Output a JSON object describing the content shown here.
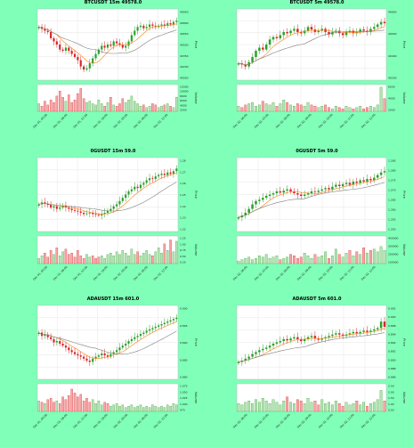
{
  "page": {
    "background": "#7fffb8"
  },
  "colors": {
    "up": "#2ca02c",
    "down": "#d62728",
    "ma_fast": "#ff7f0e",
    "ma_slow": "#7f7f7f",
    "vol_up": "#b5e3b5",
    "vol_down": "#f4a6a6"
  },
  "chart_data": [
    {
      "type": "candlestick",
      "title": "BTCUSDT 15m 49578.0",
      "ylabel": "Price",
      "volume_label": "Volume",
      "price_ticks": [
        "49950",
        "49800",
        "49650",
        "49500",
        "49350",
        "49200",
        "49050"
      ],
      "volume_ticks": [
        "12000",
        "10000",
        "8000",
        "6000",
        "4000",
        "2000"
      ],
      "x_ticks": [
        "Dec 01, 00:00",
        "Dec 01, 06:00",
        "Dec 01, 12:00",
        "Dec 01, 18:00",
        "Dec 02, 00:00",
        "Dec 02, 06:00",
        "Dec 02, 12:00"
      ],
      "close": [
        0.78,
        0.75,
        0.72,
        0.7,
        0.6,
        0.55,
        0.5,
        0.42,
        0.4,
        0.45,
        0.4,
        0.35,
        0.3,
        0.25,
        0.15,
        0.1,
        0.12,
        0.2,
        0.28,
        0.35,
        0.42,
        0.48,
        0.45,
        0.5,
        0.48,
        0.55,
        0.52,
        0.5,
        0.45,
        0.48,
        0.55,
        0.65,
        0.72,
        0.78,
        0.8,
        0.76,
        0.78,
        0.82,
        0.8,
        0.78,
        0.8,
        0.82,
        0.8,
        0.84,
        0.82,
        0.86,
        0.88
      ],
      "volume": [
        0.3,
        0.2,
        0.4,
        0.25,
        0.45,
        0.35,
        0.6,
        0.8,
        0.55,
        0.4,
        0.65,
        0.35,
        0.45,
        0.7,
        0.9,
        0.5,
        0.35,
        0.4,
        0.3,
        0.25,
        0.45,
        0.3,
        0.2,
        0.35,
        0.55,
        0.25,
        0.2,
        0.3,
        0.5,
        0.35,
        0.45,
        0.6,
        0.4,
        0.3,
        0.2,
        0.25,
        0.15,
        0.2,
        0.3,
        0.25,
        0.15,
        0.2,
        0.25,
        0.3,
        0.2,
        0.15,
        0.55
      ]
    },
    {
      "type": "candlestick",
      "title": "BTCUSDT 5m 49578.0",
      "ylabel": "Price",
      "volume_label": "Volume",
      "price_ticks": [
        "49800",
        "49600",
        "49400",
        "49200"
      ],
      "volume_ticks": [
        "6000",
        "4000",
        "2000"
      ],
      "x_ticks": [
        "Dec 02, 06:00",
        "Dec 02, 07:00",
        "Dec 02, 08:00",
        "Dec 02, 09:00",
        "Dec 02, 10:00",
        "Dec 02, 11:00",
        "Dec 02, 12:00"
      ],
      "close": [
        0.2,
        0.18,
        0.15,
        0.22,
        0.3,
        0.4,
        0.45,
        0.42,
        0.5,
        0.58,
        0.62,
        0.6,
        0.65,
        0.7,
        0.68,
        0.72,
        0.75,
        0.7,
        0.68,
        0.72,
        0.78,
        0.74,
        0.7,
        0.72,
        0.75,
        0.7,
        0.66,
        0.7,
        0.72,
        0.68,
        0.65,
        0.7,
        0.72,
        0.68,
        0.7,
        0.74,
        0.72,
        0.7,
        0.75,
        0.78,
        0.82,
        0.86,
        0.84
      ],
      "volume": [
        0.2,
        0.15,
        0.25,
        0.3,
        0.35,
        0.2,
        0.25,
        0.4,
        0.3,
        0.25,
        0.35,
        0.2,
        0.3,
        0.45,
        0.35,
        0.25,
        0.2,
        0.3,
        0.25,
        0.2,
        0.35,
        0.25,
        0.2,
        0.15,
        0.2,
        0.25,
        0.15,
        0.1,
        0.2,
        0.15,
        0.1,
        0.2,
        0.15,
        0.1,
        0.15,
        0.2,
        0.1,
        0.15,
        0.2,
        0.15,
        0.25,
        0.95,
        0.5
      ]
    },
    {
      "type": "candlestick",
      "title": "0GUSDT 15m 59.0",
      "ylabel": "Price",
      "volume_label": "Volume",
      "price_ticks": [
        "1.28",
        "1.27",
        "1.26",
        "1.25",
        "1.24",
        "1.23",
        "1.22"
      ],
      "volume_ticks": [
        "1.25",
        "1.00",
        "0.75",
        "0.50",
        "0.25"
      ],
      "x_ticks": [
        "Dec 01, 00:00",
        "Dec 01, 06:00",
        "Dec 01, 12:00",
        "Dec 01, 18:00",
        "Dec 02, 00:00",
        "Dec 02, 06:00",
        "Dec 02, 12:00"
      ],
      "close": [
        0.35,
        0.38,
        0.36,
        0.34,
        0.3,
        0.32,
        0.28,
        0.3,
        0.33,
        0.3,
        0.28,
        0.26,
        0.25,
        0.24,
        0.22,
        0.2,
        0.21,
        0.22,
        0.2,
        0.19,
        0.18,
        0.2,
        0.22,
        0.25,
        0.28,
        0.32,
        0.35,
        0.4,
        0.45,
        0.5,
        0.55,
        0.58,
        0.62,
        0.6,
        0.65,
        0.68,
        0.72,
        0.75,
        0.74,
        0.78,
        0.8,
        0.82,
        0.8,
        0.84,
        0.82,
        0.86,
        0.9
      ],
      "volume": [
        0.2,
        0.3,
        0.4,
        0.25,
        0.5,
        0.35,
        0.6,
        0.3,
        0.45,
        0.55,
        0.35,
        0.4,
        0.25,
        0.5,
        0.3,
        0.2,
        0.35,
        0.25,
        0.3,
        0.2,
        0.25,
        0.3,
        0.2,
        0.35,
        0.4,
        0.3,
        0.45,
        0.35,
        0.5,
        0.4,
        0.3,
        0.55,
        0.35,
        0.45,
        0.3,
        0.4,
        0.5,
        0.35,
        0.3,
        0.45,
        0.6,
        0.4,
        0.75,
        0.5,
        0.9,
        0.45,
        0.85
      ]
    },
    {
      "type": "candlestick",
      "title": "0GUSDT 5m 59.0",
      "ylabel": "Price",
      "volume_label": "Volume",
      "price_ticks": [
        "1.285",
        "1.280",
        "1.275",
        "1.270",
        "1.265",
        "1.260",
        "1.255",
        "1.250"
      ],
      "volume_ticks": [
        "400000",
        "300000",
        "200000",
        "100000"
      ],
      "x_ticks": [
        "Dec 02, 06:00",
        "Dec 02, 07:00",
        "Dec 02, 08:00",
        "Dec 02, 09:00",
        "Dec 02, 10:00",
        "Dec 02, 11:00",
        "Dec 02, 12:00"
      ],
      "close": [
        0.15,
        0.18,
        0.22,
        0.28,
        0.35,
        0.4,
        0.42,
        0.45,
        0.48,
        0.5,
        0.52,
        0.55,
        0.53,
        0.56,
        0.58,
        0.55,
        0.52,
        0.5,
        0.48,
        0.5,
        0.52,
        0.55,
        0.54,
        0.56,
        0.58,
        0.6,
        0.58,
        0.62,
        0.65,
        0.63,
        0.66,
        0.68,
        0.65,
        0.7,
        0.68,
        0.72,
        0.7,
        0.74,
        0.72,
        0.76,
        0.8,
        0.84,
        0.86
      ],
      "volume": [
        0.1,
        0.15,
        0.2,
        0.25,
        0.15,
        0.2,
        0.3,
        0.25,
        0.35,
        0.2,
        0.25,
        0.3,
        0.15,
        0.2,
        0.25,
        0.35,
        0.3,
        0.2,
        0.25,
        0.4,
        0.3,
        0.2,
        0.35,
        0.25,
        0.3,
        0.45,
        0.2,
        0.3,
        0.55,
        0.35,
        0.25,
        0.4,
        0.5,
        0.3,
        0.45,
        0.35,
        0.6,
        0.4,
        0.5,
        0.55,
        0.45,
        0.65,
        0.5
      ]
    },
    {
      "type": "candlestick",
      "title": "ADAUSDT 15m 601.0",
      "ylabel": "Price",
      "volume_label": "Volume",
      "price_ticks": [
        "0.900",
        "0.895",
        "0.890",
        "0.885",
        "0.880"
      ],
      "volume_ticks": [
        "1.075",
        "1.050",
        "1.025",
        "1.000",
        "975"
      ],
      "x_ticks": [
        "Dec 01, 00:00",
        "Dec 01, 06:00",
        "Dec 01, 12:00",
        "Dec 01, 18:00",
        "Dec 02, 00:00",
        "Dec 02, 06:00",
        "Dec 02, 12:00"
      ],
      "close": [
        0.65,
        0.6,
        0.62,
        0.58,
        0.55,
        0.5,
        0.52,
        0.48,
        0.45,
        0.42,
        0.38,
        0.35,
        0.32,
        0.3,
        0.28,
        0.25,
        0.22,
        0.2,
        0.25,
        0.28,
        0.3,
        0.33,
        0.3,
        0.28,
        0.32,
        0.35,
        0.38,
        0.42,
        0.45,
        0.48,
        0.52,
        0.55,
        0.58,
        0.6,
        0.63,
        0.65,
        0.68,
        0.7,
        0.72,
        0.74,
        0.76,
        0.78,
        0.8,
        0.82,
        0.84,
        0.86,
        0.88
      ],
      "volume": [
        0.4,
        0.35,
        0.3,
        0.45,
        0.5,
        0.35,
        0.4,
        0.3,
        0.55,
        0.45,
        0.6,
        0.85,
        0.7,
        0.55,
        0.65,
        0.4,
        0.5,
        0.35,
        0.45,
        0.3,
        0.4,
        0.25,
        0.35,
        0.3,
        0.2,
        0.25,
        0.3,
        0.2,
        0.25,
        0.15,
        0.2,
        0.25,
        0.15,
        0.2,
        0.25,
        0.15,
        0.2,
        0.15,
        0.25,
        0.2,
        0.15,
        0.2,
        0.15,
        0.25,
        0.2,
        0.3,
        0.25
      ]
    },
    {
      "type": "candlestick",
      "title": "ADAUSDT 5m 601.0",
      "ylabel": "Price",
      "volume_label": "Volume",
      "price_ticks": [
        "0.902",
        "0.900",
        "0.898",
        "0.896",
        "0.894",
        "0.892",
        "0.890",
        "0.888",
        "0.886"
      ],
      "volume_ticks": [
        "2.50",
        "2.00",
        "1.50",
        "1.00",
        "0.50"
      ],
      "x_ticks": [
        "Dec 02, 06:00",
        "Dec 02, 07:00",
        "Dec 02, 08:00",
        "Dec 02, 09:00",
        "Dec 02, 10:00",
        "Dec 02, 11:00",
        "Dec 02, 12:00"
      ],
      "close": [
        0.2,
        0.22,
        0.25,
        0.28,
        0.32,
        0.35,
        0.38,
        0.4,
        0.42,
        0.45,
        0.48,
        0.5,
        0.52,
        0.55,
        0.53,
        0.56,
        0.58,
        0.55,
        0.52,
        0.55,
        0.58,
        0.6,
        0.56,
        0.54,
        0.56,
        0.58,
        0.6,
        0.62,
        0.64,
        0.62,
        0.6,
        0.62,
        0.64,
        0.66,
        0.64,
        0.66,
        0.68,
        0.66,
        0.68,
        0.7,
        0.72,
        0.82,
        0.74
      ],
      "volume": [
        0.3,
        0.25,
        0.35,
        0.4,
        0.3,
        0.45,
        0.35,
        0.5,
        0.4,
        0.3,
        0.45,
        0.35,
        0.25,
        0.4,
        0.55,
        0.35,
        0.3,
        0.45,
        0.4,
        0.3,
        0.5,
        0.35,
        0.4,
        0.25,
        0.45,
        0.3,
        0.35,
        0.25,
        0.4,
        0.3,
        0.2,
        0.35,
        0.25,
        0.3,
        0.4,
        0.25,
        0.35,
        0.2,
        0.3,
        0.35,
        0.45,
        0.8,
        0.4
      ]
    }
  ]
}
